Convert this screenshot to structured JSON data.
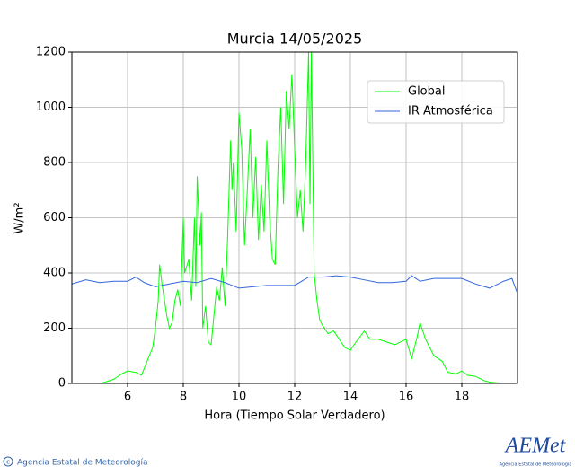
{
  "chart_data": {
    "type": "line",
    "title": "Murcia 14/05/2025",
    "xlabel": "Hora (Tiempo Solar Verdadero)",
    "ylabel": "W/m²",
    "xlim": [
      4,
      20
    ],
    "ylim": [
      0,
      1200
    ],
    "xticks": [
      6,
      8,
      10,
      12,
      14,
      16,
      18
    ],
    "yticks": [
      0,
      200,
      400,
      600,
      800,
      1000,
      1200
    ],
    "grid": true,
    "legend": "upper right",
    "series": [
      {
        "name": "Global",
        "color": "#00ff00",
        "x": [
          4.0,
          5.0,
          5.2,
          5.5,
          5.8,
          6.0,
          6.3,
          6.5,
          6.7,
          6.9,
          7.0,
          7.1,
          7.15,
          7.25,
          7.4,
          7.5,
          7.6,
          7.7,
          7.8,
          7.9,
          8.0,
          8.05,
          8.2,
          8.3,
          8.4,
          8.45,
          8.5,
          8.6,
          8.65,
          8.7,
          8.8,
          8.9,
          9.0,
          9.2,
          9.3,
          9.4,
          9.5,
          9.6,
          9.7,
          9.75,
          9.8,
          9.9,
          10.0,
          10.1,
          10.2,
          10.3,
          10.4,
          10.5,
          10.6,
          10.7,
          10.8,
          10.9,
          11.0,
          11.1,
          11.2,
          11.3,
          11.4,
          11.5,
          11.6,
          11.7,
          11.8,
          11.9,
          12.0,
          12.1,
          12.2,
          12.3,
          12.4,
          12.5,
          12.55,
          12.6,
          12.7,
          12.8,
          12.9,
          13.0,
          13.2,
          13.4,
          13.6,
          13.8,
          14.0,
          14.2,
          14.5,
          14.7,
          15.0,
          15.3,
          15.6,
          16.0,
          16.2,
          16.4,
          16.5,
          16.7,
          17.0,
          17.3,
          17.5,
          17.8,
          18.0,
          18.2,
          18.5,
          18.8,
          19.0,
          19.5,
          20.0
        ],
        "values": [
          0,
          0,
          5,
          15,
          35,
          45,
          40,
          30,
          80,
          130,
          200,
          300,
          430,
          350,
          250,
          200,
          220,
          300,
          340,
          280,
          600,
          400,
          450,
          300,
          600,
          350,
          750,
          500,
          620,
          200,
          280,
          150,
          140,
          350,
          300,
          420,
          280,
          550,
          880,
          700,
          800,
          550,
          980,
          850,
          500,
          700,
          920,
          600,
          820,
          520,
          720,
          550,
          880,
          600,
          450,
          430,
          780,
          1000,
          650,
          1060,
          920,
          1120,
          850,
          600,
          700,
          550,
          810,
          1200,
          650,
          1200,
          400,
          300,
          230,
          210,
          180,
          190,
          160,
          130,
          120,
          150,
          190,
          160,
          160,
          150,
          140,
          160,
          90,
          170,
          220,
          160,
          100,
          80,
          40,
          35,
          45,
          30,
          25,
          10,
          5,
          0,
          0
        ]
      },
      {
        "name": "IR Atmosférica",
        "color": "#3366dd",
        "x": [
          4.0,
          4.5,
          5.0,
          5.5,
          6.0,
          6.3,
          6.6,
          7.0,
          7.5,
          8.0,
          8.5,
          9.0,
          9.5,
          10.0,
          10.5,
          11.0,
          11.5,
          12.0,
          12.5,
          13.0,
          13.5,
          14.0,
          14.5,
          15.0,
          15.5,
          16.0,
          16.2,
          16.5,
          17.0,
          17.5,
          18.0,
          18.5,
          19.0,
          19.5,
          19.8,
          20.0
        ],
        "values": [
          360,
          375,
          365,
          370,
          370,
          385,
          365,
          350,
          360,
          370,
          365,
          380,
          365,
          345,
          350,
          355,
          355,
          355,
          385,
          385,
          390,
          385,
          375,
          365,
          365,
          370,
          390,
          370,
          380,
          380,
          380,
          360,
          345,
          370,
          380,
          325
        ]
      }
    ]
  },
  "footer": {
    "agency": "Agencia Estatal de Meteorología",
    "logo": "AEMet",
    "logo_caption": "Agencia Estatal de Meteorología"
  }
}
